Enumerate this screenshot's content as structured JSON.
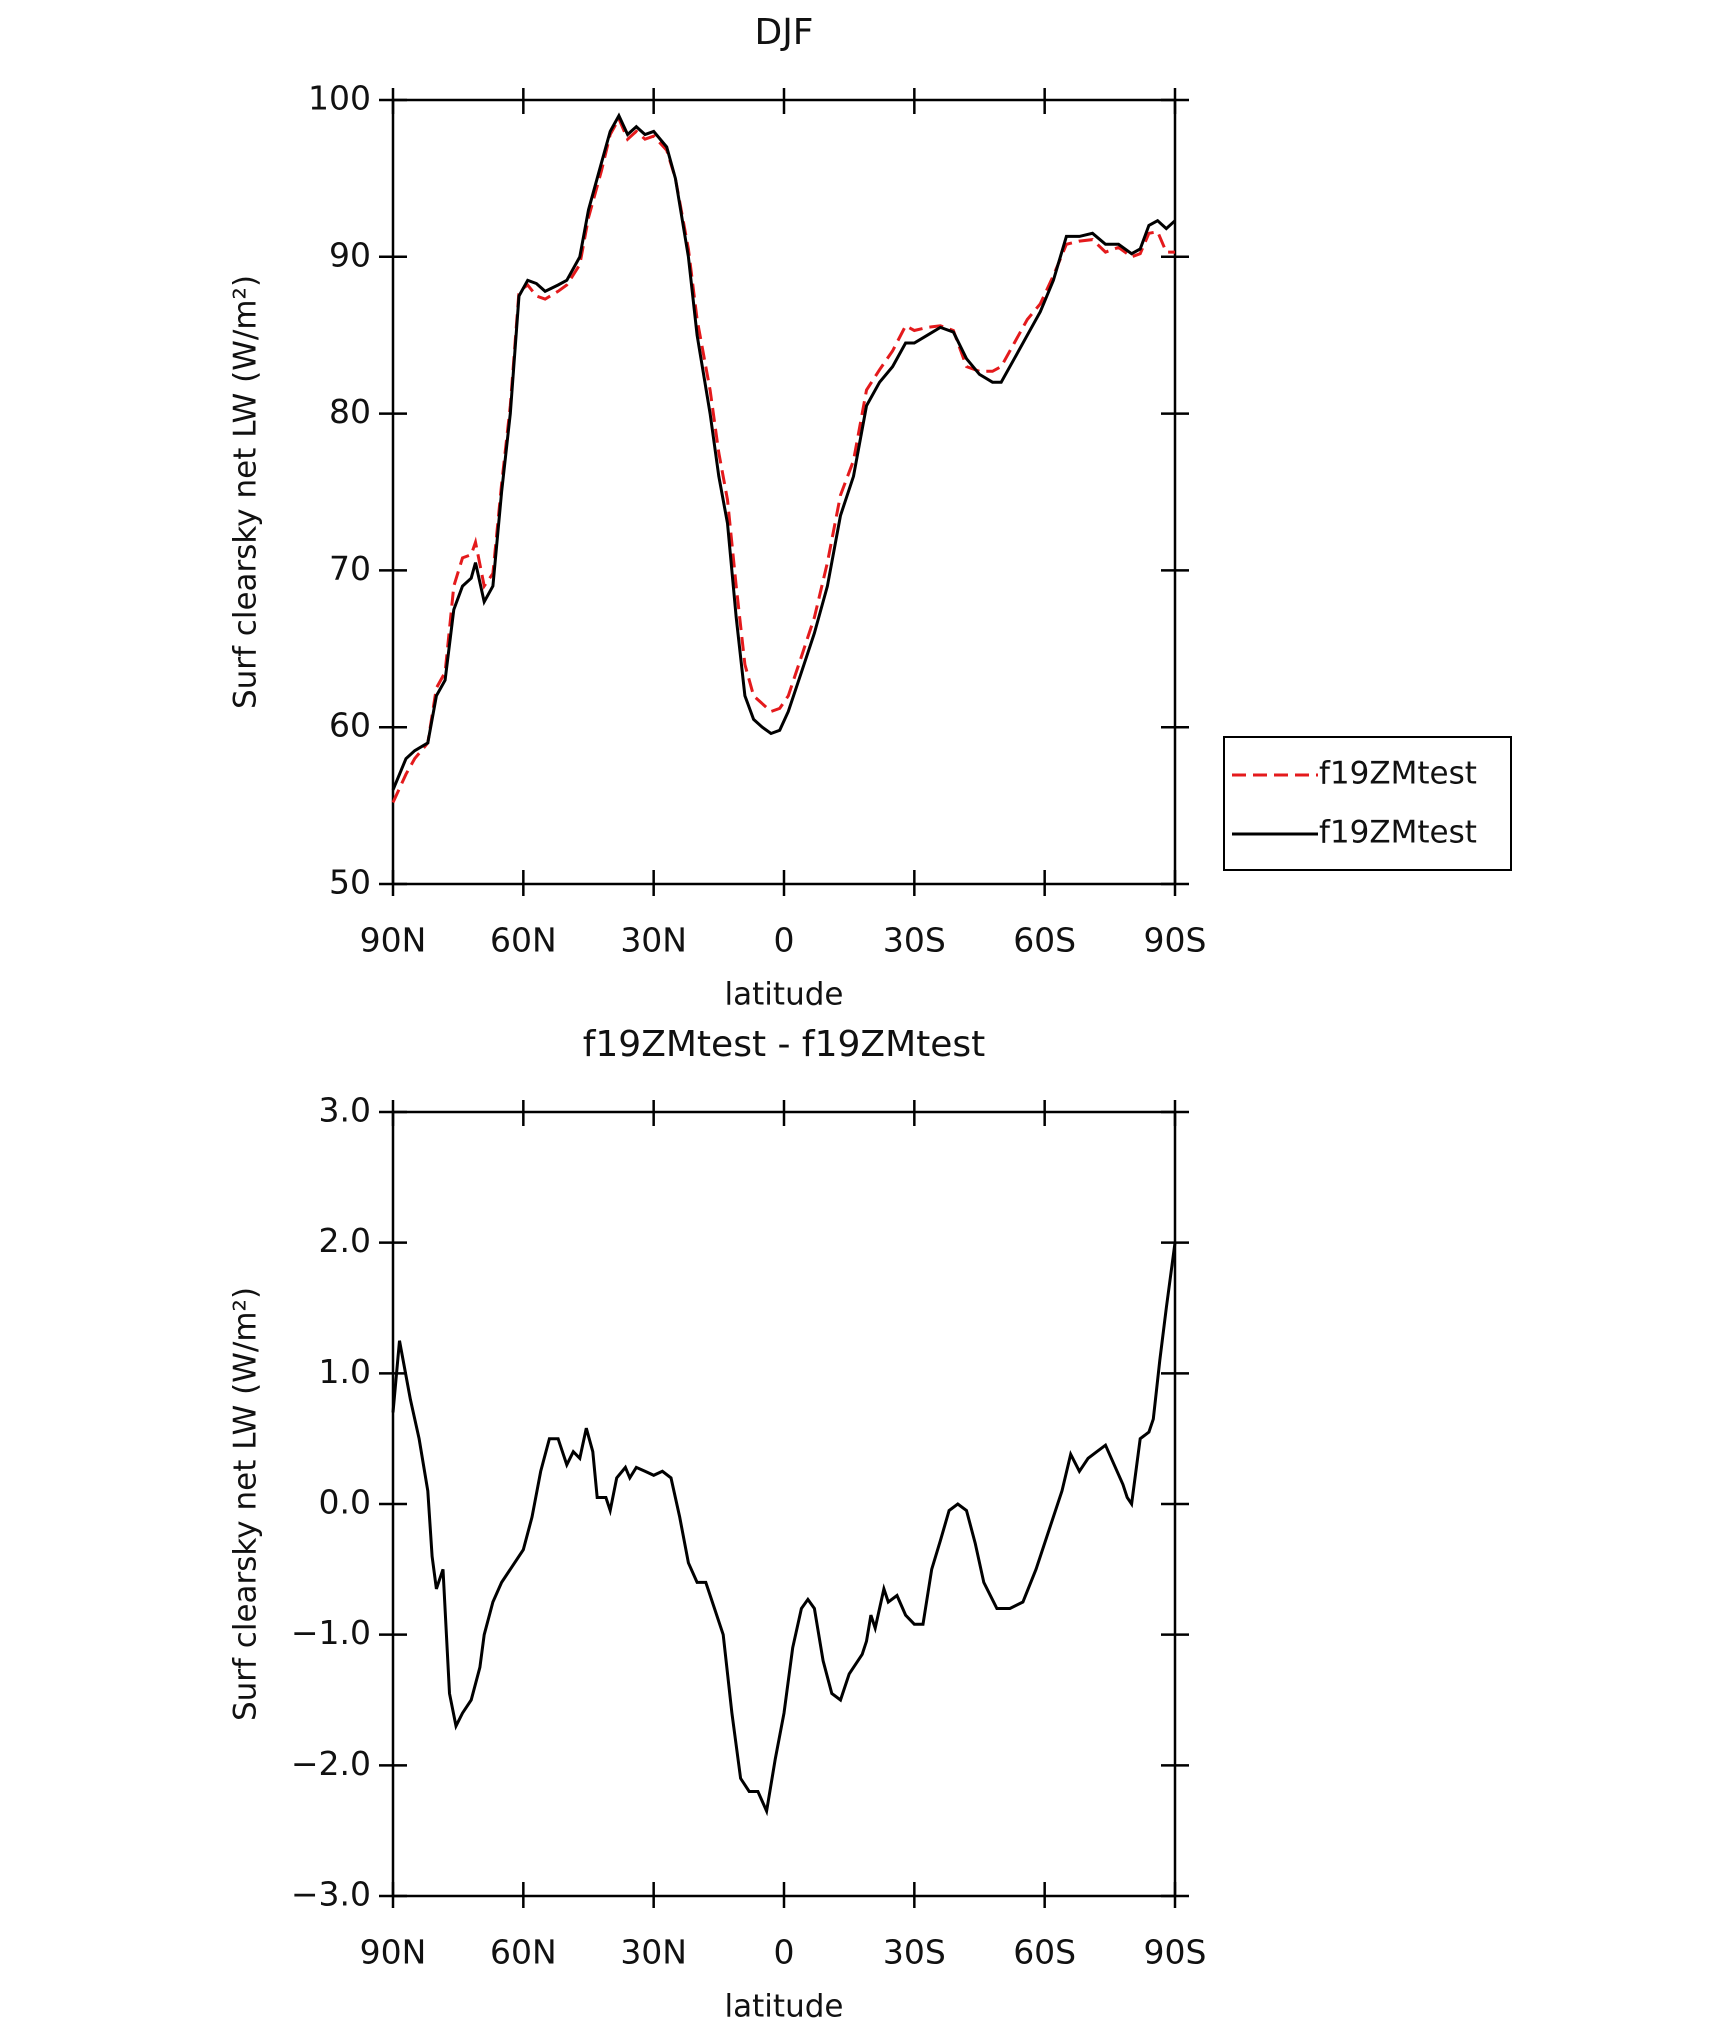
{
  "chart_data": [
    {
      "type": "line",
      "title": "DJF",
      "xlabel": "latitude",
      "ylabel": "Surf clearsky net LW (W/m²)",
      "xlim": [
        90,
        -90
      ],
      "xticks": [
        {
          "value": 90,
          "label": "90N"
        },
        {
          "value": 60,
          "label": "60N"
        },
        {
          "value": 30,
          "label": "30N"
        },
        0,
        {
          "value": -30,
          "label": "30S"
        },
        {
          "value": -60,
          "label": "60S"
        },
        {
          "value": -90,
          "label": "90S"
        }
      ],
      "ylim": [
        50,
        100
      ],
      "yticks": [
        50,
        60,
        70,
        80,
        90,
        100
      ],
      "legend": "right",
      "x": [
        90,
        87,
        85,
        82,
        80,
        78,
        76,
        74,
        72,
        71,
        69,
        67,
        65,
        63,
        61,
        59,
        57,
        55,
        52,
        50,
        47,
        45,
        42,
        40,
        38,
        36,
        34,
        32,
        30,
        27,
        25,
        22,
        20,
        17,
        15,
        13,
        11,
        9,
        7,
        5,
        3,
        1,
        -1,
        -4,
        -7,
        -10,
        -13,
        -16,
        -19,
        -22,
        -25,
        -28,
        -30,
        -33,
        -36,
        -39,
        -42,
        -45,
        -48,
        -50,
        -53,
        -56,
        -59,
        -62,
        -65,
        -68,
        -71,
        -74,
        -77,
        -80,
        -82,
        -84,
        -86,
        -88,
        -90
      ],
      "series": [
        {
          "name": "f19ZMtest",
          "color": "#e41a1c",
          "dash": true,
          "values": [
            55.2,
            57,
            58,
            59,
            62.5,
            63.5,
            69,
            70.8,
            71,
            71.8,
            69,
            69.8,
            75.5,
            80.5,
            87.8,
            88.2,
            87.5,
            87.3,
            87.8,
            88.2,
            89.5,
            92.5,
            95.5,
            97.8,
            98.8,
            97.5,
            98,
            97.5,
            97.7,
            96.8,
            95,
            90.5,
            86,
            81.5,
            77.5,
            74.5,
            69,
            64,
            62,
            61.5,
            61,
            61.2,
            62,
            64.5,
            67,
            70.5,
            74.8,
            77,
            81.5,
            82.8,
            84,
            85.6,
            85.3,
            85.5,
            85.6,
            85.3,
            83,
            82.7,
            82.7,
            83,
            84.5,
            86,
            87,
            88.8,
            90.8,
            91,
            91.1,
            90.3,
            90.6,
            90,
            90.2,
            91.5,
            91.6,
            90.3,
            90.3
          ]
        },
        {
          "name": "f19ZMtest",
          "color": "#000000",
          "dash": false,
          "values": [
            56,
            58,
            58.5,
            59,
            62,
            63,
            67.5,
            69,
            69.5,
            70.5,
            68,
            69,
            75,
            80,
            87.5,
            88.5,
            88.3,
            87.8,
            88.2,
            88.5,
            90,
            93,
            96,
            98,
            99,
            97.8,
            98.3,
            97.8,
            98,
            97,
            95,
            90,
            85,
            80,
            76,
            73,
            67,
            62,
            60.5,
            60,
            59.6,
            59.8,
            61,
            63.5,
            66,
            69,
            73.5,
            76,
            80.5,
            82,
            83,
            84.5,
            84.5,
            85,
            85.5,
            85.2,
            83.5,
            82.5,
            82,
            82,
            83.5,
            85,
            86.5,
            88.5,
            91.3,
            91.3,
            91.5,
            90.8,
            90.8,
            90.2,
            90.5,
            92,
            92.3,
            91.8,
            92.3
          ]
        }
      ]
    },
    {
      "type": "line",
      "title": "f19ZMtest - f19ZMtest",
      "xlabel": "latitude",
      "ylabel": "Surf clearsky net LW (W/m²)",
      "xlim": [
        90,
        -90
      ],
      "xticks": [
        {
          "value": 90,
          "label": "90N"
        },
        {
          "value": 60,
          "label": "60N"
        },
        {
          "value": 30,
          "label": "30N"
        },
        0,
        {
          "value": -30,
          "label": "30S"
        },
        {
          "value": -60,
          "label": "60S"
        },
        {
          "value": -90,
          "label": "90S"
        }
      ],
      "ylim": [
        -3,
        3
      ],
      "yticks": [
        {
          "value": -3,
          "label": "−3.0"
        },
        {
          "value": -2,
          "label": "−2.0"
        },
        {
          "value": -1,
          "label": "−1.0"
        },
        {
          "value": 0,
          "label": "0.0"
        },
        {
          "value": 1,
          "label": "1.0"
        },
        {
          "value": 2,
          "label": "2.0"
        },
        {
          "value": 3,
          "label": "3.0"
        }
      ],
      "x": [
        90,
        88.5,
        86,
        84,
        82,
        81,
        80,
        78.5,
        77,
        75.5,
        74,
        72,
        70,
        69,
        67,
        65,
        63,
        60,
        58,
        56,
        54,
        52,
        50,
        48.5,
        47,
        45.5,
        44,
        43,
        41,
        40,
        38.5,
        36.5,
        35.5,
        34,
        32,
        30,
        28,
        26,
        24,
        22,
        20,
        18,
        16,
        14,
        12,
        10,
        8,
        6,
        4,
        2,
        0,
        -2,
        -4,
        -5.5,
        -7,
        -9,
        -11,
        -13,
        -15,
        -17,
        -18,
        -19,
        -20,
        -21,
        -23,
        -24,
        -26,
        -28,
        -30,
        -32,
        -34,
        -36,
        -38,
        -40,
        -42,
        -44,
        -46,
        -49,
        -52,
        -55,
        -58,
        -61,
        -64,
        -66,
        -68,
        -70,
        -72,
        -74,
        -76,
        -78,
        -79,
        -80,
        -82,
        -84,
        -85,
        -86.5,
        -88,
        -90
      ],
      "series": [
        {
          "color": "#000000",
          "dash": false,
          "values": [
            0.7,
            1.25,
            0.8,
            0.5,
            0.1,
            -0.4,
            -0.65,
            -0.5,
            -1.45,
            -1.7,
            -1.6,
            -1.5,
            -1.25,
            -1.0,
            -0.75,
            -0.6,
            -0.5,
            -0.35,
            -0.1,
            0.25,
            0.5,
            0.5,
            0.3,
            0.4,
            0.35,
            0.58,
            0.4,
            0.05,
            0.05,
            -0.05,
            0.2,
            0.28,
            0.2,
            0.28,
            0.25,
            0.22,
            0.25,
            0.2,
            -0.1,
            -0.45,
            -0.6,
            -0.6,
            -0.8,
            -1.0,
            -1.6,
            -2.1,
            -2.2,
            -2.2,
            -2.35,
            -1.95,
            -1.6,
            -1.1,
            -0.8,
            -0.73,
            -0.8,
            -1.2,
            -1.45,
            -1.5,
            -1.3,
            -1.2,
            -1.15,
            -1.05,
            -0.85,
            -0.95,
            -0.65,
            -0.75,
            -0.7,
            -0.85,
            -0.92,
            -0.92,
            -0.5,
            -0.28,
            -0.05,
            0,
            -0.05,
            -0.3,
            -0.6,
            -0.8,
            -0.8,
            -0.75,
            -0.5,
            -0.2,
            0.1,
            0.38,
            0.25,
            0.35,
            0.4,
            0.45,
            0.3,
            0.15,
            0.05,
            0,
            0.5,
            0.55,
            0.65,
            1.1,
            1.5,
            2.0
          ]
        }
      ]
    }
  ]
}
